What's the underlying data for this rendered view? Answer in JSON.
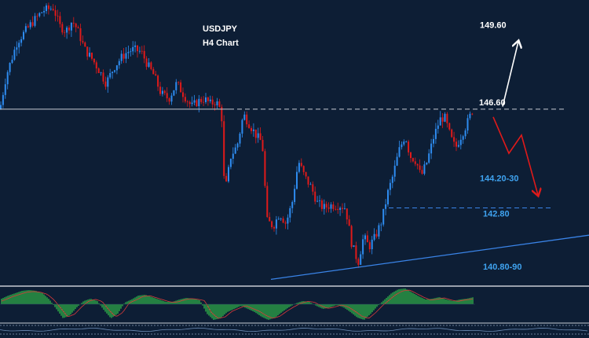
{
  "chart_data": {
    "type": "candlestick",
    "title": "USDJPY",
    "subtitle": "H4 Chart",
    "y_range": [
      139.85,
      150.8
    ],
    "price_path": [
      [
        0,
        146.6
      ],
      [
        8,
        147.9
      ],
      [
        22,
        149.2
      ],
      [
        40,
        149.9
      ],
      [
        55,
        150.4
      ],
      [
        68,
        150.5
      ],
      [
        76,
        149.8
      ],
      [
        84,
        149.6
      ],
      [
        92,
        150.0
      ],
      [
        98,
        149.7
      ],
      [
        108,
        148.9
      ],
      [
        118,
        148.5
      ],
      [
        128,
        148.0
      ],
      [
        135,
        147.6
      ],
      [
        145,
        148.2
      ],
      [
        155,
        148.6
      ],
      [
        162,
        148.8
      ],
      [
        170,
        148.9
      ],
      [
        180,
        148.8
      ],
      [
        188,
        148.3
      ],
      [
        196,
        147.9
      ],
      [
        205,
        147.2
      ],
      [
        215,
        147.0
      ],
      [
        225,
        147.6
      ],
      [
        235,
        147.1
      ],
      [
        244,
        146.7
      ],
      [
        252,
        146.9
      ],
      [
        260,
        147.0
      ],
      [
        268,
        146.8
      ],
      [
        275,
        146.9
      ],
      [
        282,
        146.5
      ],
      [
        286,
        143.3
      ],
      [
        294,
        144.8
      ],
      [
        302,
        145.2
      ],
      [
        310,
        146.4
      ],
      [
        318,
        146.0
      ],
      [
        326,
        145.6
      ],
      [
        334,
        145.3
      ],
      [
        340,
        142.3
      ],
      [
        348,
        142.1
      ],
      [
        356,
        142.6
      ],
      [
        364,
        142.2
      ],
      [
        372,
        143.0
      ],
      [
        380,
        144.6
      ],
      [
        388,
        144.0
      ],
      [
        396,
        143.6
      ],
      [
        404,
        143.0
      ],
      [
        412,
        142.8
      ],
      [
        420,
        142.9
      ],
      [
        432,
        142.9
      ],
      [
        440,
        142.8
      ],
      [
        448,
        141.4
      ],
      [
        456,
        140.7
      ],
      [
        463,
        141.7
      ],
      [
        470,
        141.3
      ],
      [
        478,
        141.7
      ],
      [
        486,
        142.3
      ],
      [
        494,
        143.4
      ],
      [
        500,
        144.0
      ],
      [
        508,
        145.0
      ],
      [
        516,
        145.6
      ],
      [
        522,
        144.8
      ],
      [
        530,
        144.6
      ],
      [
        536,
        144.0
      ],
      [
        544,
        144.6
      ],
      [
        552,
        145.5
      ],
      [
        560,
        146.2
      ],
      [
        566,
        146.3
      ],
      [
        574,
        145.5
      ],
      [
        580,
        145.1
      ],
      [
        586,
        145.5
      ],
      [
        594,
        146.0
      ],
      [
        602,
        146.6
      ]
    ],
    "levels": [
      {
        "label": "146.60",
        "value": 146.6,
        "style": "dashed"
      },
      {
        "label": "142.80",
        "value": 142.8,
        "style": "dashed"
      }
    ],
    "level_labels": [
      {
        "label": "149.60",
        "value": 149.6,
        "color": "#ffffff"
      },
      {
        "label": "146.60",
        "value": 146.6,
        "color": "#ffffff"
      },
      {
        "label": "144.20-30",
        "value": 144.25,
        "color": "#3fa3f0"
      },
      {
        "label": "142.80",
        "value": 142.8,
        "color": "#3fa3f0"
      },
      {
        "label": "140.80-90",
        "value": 140.85,
        "color": "#3fa3f0"
      }
    ],
    "support_trendline": [
      [
        345,
        140.05
      ],
      [
        750,
        141.75
      ]
    ],
    "scenarios": [
      {
        "name": "bullish",
        "color": "#ffffff",
        "path": [
          [
            640,
            146.7
          ],
          [
            660,
            149.2
          ]
        ]
      },
      {
        "name": "bearish",
        "color": "#e01a1a",
        "path": [
          [
            628,
            146.3
          ],
          [
            648,
            144.9
          ],
          [
            664,
            145.6
          ],
          [
            685,
            143.3
          ]
        ]
      }
    ],
    "oscillator": {
      "type": "histogram",
      "zero_line": true,
      "values": [
        0.35,
        0.55,
        0.7,
        0.85,
        0.9,
        0.85,
        0.7,
        0.3,
        -0.3,
        -0.9,
        -0.7,
        -0.2,
        0.2,
        0.35,
        0.2,
        -0.4,
        -0.9,
        -0.6,
        0.1,
        0.3,
        0.55,
        0.6,
        0.45,
        0.3,
        0.15,
        0.15,
        0.3,
        0.4,
        0.35,
        0.25,
        -0.6,
        -1.0,
        -0.9,
        -0.5,
        -0.3,
        -0.1,
        -0.3,
        -0.5,
        -0.8,
        -1.0,
        -0.85,
        -0.5,
        -0.2,
        0.05,
        0.2,
        0.15,
        -0.1,
        -0.3,
        -0.2,
        -0.05,
        -0.2,
        -0.5,
        -0.85,
        -1.0,
        -0.6,
        -0.1,
        0.3,
        0.7,
        0.95,
        1.0,
        0.75,
        0.5,
        0.3,
        0.35,
        0.45,
        0.3,
        0.2,
        0.3,
        0.35,
        0.45
      ]
    }
  },
  "colors": {
    "background": "#0d1e35",
    "up_candle": "#2e8cf0",
    "down_candle": "#e01a1a",
    "level_line": "#c8ccd4",
    "trendline": "#3a84e8",
    "hist_positive": "#35c24a",
    "hist_negative": "#35c24a",
    "separator": "#c8ccd4"
  }
}
